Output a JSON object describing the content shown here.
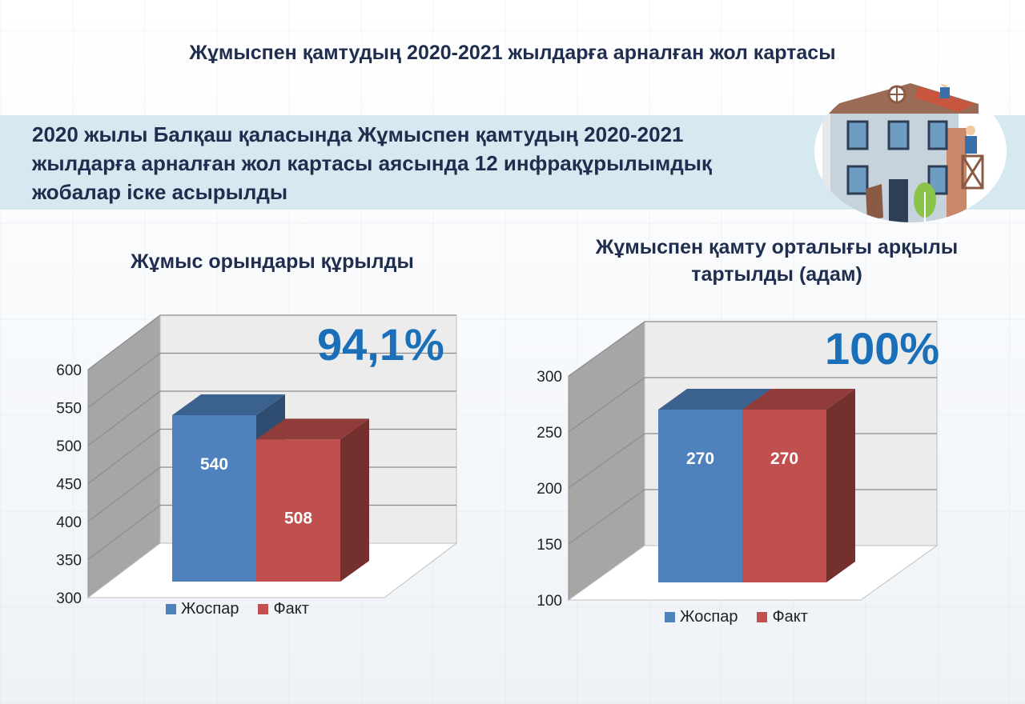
{
  "header": {
    "title": "Жұмыспен қамтудың 2020-2021 жылдарға арналған жол картасы"
  },
  "banner": {
    "text": "2020 жылы Балқаш қаласында Жұмыспен қамтудың 2020-2021 жылдарға арналған жол картасы аясында 12 инфрақұрылымдық жобалар іске асырылды"
  },
  "colors": {
    "plan": "#4f81bd",
    "fact": "#c0504d",
    "accent": "#1b6fb8",
    "title": "#1f2d4e"
  },
  "chart_data": [
    {
      "type": "bar",
      "title": "Жұмыс орындары құрылды",
      "percent_label": "94,1%",
      "categories": [
        ""
      ],
      "series": [
        {
          "name": "Жоспар",
          "values": [
            540
          ],
          "label": "540"
        },
        {
          "name": "Факт",
          "values": [
            508
          ],
          "label": "508"
        }
      ],
      "ylim": [
        300,
        600
      ],
      "yticks": [
        "300",
        "350",
        "400",
        "450",
        "500",
        "550",
        "600"
      ],
      "grid": true,
      "legend": "bottom"
    },
    {
      "type": "bar",
      "title": "Жұмыспен қамту орталығы арқылы тартылды  (адам)",
      "percent_label": "100%",
      "categories": [
        ""
      ],
      "series": [
        {
          "name": "Жоспар",
          "values": [
            270
          ],
          "label": "270"
        },
        {
          "name": "Факт",
          "values": [
            270
          ],
          "label": "270"
        }
      ],
      "ylim": [
        100,
        300
      ],
      "yticks": [
        "100",
        "150",
        "200",
        "250",
        "300"
      ],
      "grid": true,
      "legend": "bottom"
    }
  ]
}
